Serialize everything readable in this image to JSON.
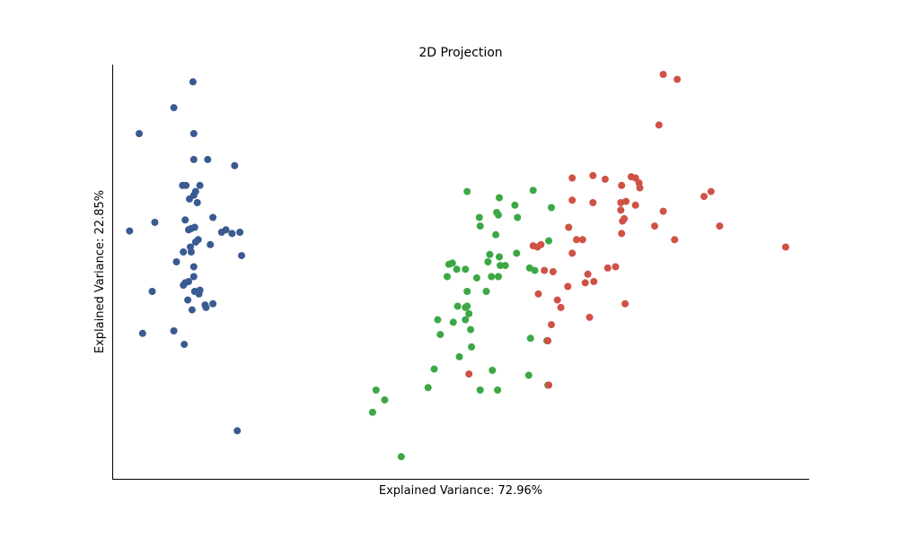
{
  "chart_data": {
    "type": "scatter",
    "title": "2D Projection",
    "xlabel": "Explained Variance: 72.96%",
    "ylabel": "Explained Variance: 22.85%",
    "xlim": [
      -3.51,
      4.51
    ],
    "ylim": [
      -1.62,
      1.74
    ],
    "grid": false,
    "legend": "none",
    "axis_ticks": "hidden",
    "series": [
      {
        "color": "#3a5a92",
        "points": [
          [
            -2.58,
            1.6
          ],
          [
            -2.8,
            1.39
          ],
          [
            -3.2,
            1.18
          ],
          [
            -2.57,
            1.18
          ],
          [
            -2.57,
            0.97
          ],
          [
            -2.41,
            0.97
          ],
          [
            -2.1,
            0.92
          ],
          [
            -2.7,
            0.76
          ],
          [
            -2.66,
            0.76
          ],
          [
            -2.5,
            0.76
          ],
          [
            -2.55,
            0.71
          ],
          [
            -2.57,
            0.68
          ],
          [
            -2.62,
            0.65
          ],
          [
            -2.53,
            0.62
          ],
          [
            -2.35,
            0.5
          ],
          [
            -2.67,
            0.48
          ],
          [
            -3.02,
            0.46
          ],
          [
            -2.56,
            0.42
          ],
          [
            -2.6,
            0.41
          ],
          [
            -2.63,
            0.4
          ],
          [
            -2.2,
            0.4
          ],
          [
            -3.31,
            0.39
          ],
          [
            -2.25,
            0.38
          ],
          [
            -2.13,
            0.37
          ],
          [
            -2.04,
            0.38
          ],
          [
            -2.52,
            0.32
          ],
          [
            -2.55,
            0.3
          ],
          [
            -2.38,
            0.28
          ],
          [
            -2.61,
            0.26
          ],
          [
            -2.69,
            0.22
          ],
          [
            -2.6,
            0.22
          ],
          [
            -2.02,
            0.19
          ],
          [
            -2.77,
            0.14
          ],
          [
            -2.57,
            0.1
          ],
          [
            -2.57,
            0.02
          ],
          [
            -2.63,
            -0.02
          ],
          [
            -2.67,
            -0.03
          ],
          [
            -2.69,
            -0.05
          ],
          [
            -3.05,
            -0.1
          ],
          [
            -2.56,
            -0.1
          ],
          [
            -2.5,
            -0.09
          ],
          [
            -2.51,
            -0.12
          ],
          [
            -2.64,
            -0.17
          ],
          [
            -2.35,
            -0.2
          ],
          [
            -2.44,
            -0.21
          ],
          [
            -2.43,
            -0.23
          ],
          [
            -2.59,
            -0.25
          ],
          [
            -2.8,
            -0.42
          ],
          [
            -3.16,
            -0.44
          ],
          [
            -2.68,
            -0.53
          ],
          [
            -2.07,
            -1.23
          ]
        ]
      },
      {
        "color": "#3ca845",
        "points": [
          [
            0.58,
            0.71
          ],
          [
            0.95,
            0.66
          ],
          [
            1.34,
            0.72
          ],
          [
            1.13,
            0.6
          ],
          [
            1.55,
            0.58
          ],
          [
            0.92,
            0.54
          ],
          [
            0.72,
            0.5
          ],
          [
            0.94,
            0.52
          ],
          [
            1.16,
            0.5
          ],
          [
            0.73,
            0.43
          ],
          [
            0.91,
            0.36
          ],
          [
            1.52,
            0.31
          ],
          [
            0.41,
            0.13
          ],
          [
            0.37,
            0.12
          ],
          [
            0.84,
            0.2
          ],
          [
            1.15,
            0.21
          ],
          [
            0.95,
            0.18
          ],
          [
            1.02,
            0.11
          ],
          [
            0.96,
            0.11
          ],
          [
            0.46,
            0.08
          ],
          [
            0.56,
            0.08
          ],
          [
            0.82,
            0.14
          ],
          [
            1.3,
            0.09
          ],
          [
            0.94,
            0.02
          ],
          [
            0.69,
            0.01
          ],
          [
            1.36,
            0.07
          ],
          [
            0.86,
            0.02
          ],
          [
            0.35,
            0.02
          ],
          [
            0.8,
            -0.1
          ],
          [
            0.58,
            -0.1
          ],
          [
            0.47,
            -0.22
          ],
          [
            0.58,
            -0.22
          ],
          [
            0.24,
            -0.33
          ],
          [
            0.42,
            -0.35
          ],
          [
            0.56,
            -0.33
          ],
          [
            0.56,
            -0.23
          ],
          [
            0.6,
            -0.28
          ],
          [
            0.62,
            -0.41
          ],
          [
            0.27,
            -0.45
          ],
          [
            0.49,
            -0.63
          ],
          [
            0.63,
            -0.55
          ],
          [
            1.31,
            -0.48
          ],
          [
            1.5,
            -0.5
          ],
          [
            1.29,
            -0.78
          ],
          [
            0.87,
            -0.74
          ],
          [
            0.2,
            -0.73
          ],
          [
            0.13,
            -0.88
          ],
          [
            0.73,
            -0.9
          ],
          [
            0.93,
            -0.9
          ],
          [
            1.51,
            -0.86
          ],
          [
            -0.37,
            -0.98
          ],
          [
            -0.47,
            -0.9
          ],
          [
            -0.51,
            -1.08
          ],
          [
            -0.18,
            -1.44
          ]
        ]
      },
      {
        "color": "#d05146",
        "points": [
          [
            2.84,
            1.66
          ],
          [
            3.0,
            1.62
          ],
          [
            2.79,
            1.25
          ],
          [
            1.79,
            0.82
          ],
          [
            2.03,
            0.84
          ],
          [
            2.17,
            0.81
          ],
          [
            2.47,
            0.83
          ],
          [
            2.52,
            0.82
          ],
          [
            2.56,
            0.78
          ],
          [
            2.57,
            0.74
          ],
          [
            2.36,
            0.76
          ],
          [
            3.39,
            0.71
          ],
          [
            3.31,
            0.67
          ],
          [
            1.79,
            0.64
          ],
          [
            2.03,
            0.62
          ],
          [
            2.35,
            0.62
          ],
          [
            2.41,
            0.63
          ],
          [
            2.52,
            0.6
          ],
          [
            2.35,
            0.56
          ],
          [
            2.84,
            0.55
          ],
          [
            2.37,
            0.47
          ],
          [
            2.39,
            0.49
          ],
          [
            2.74,
            0.43
          ],
          [
            3.49,
            0.43
          ],
          [
            1.75,
            0.42
          ],
          [
            2.36,
            0.37
          ],
          [
            1.91,
            0.32
          ],
          [
            1.84,
            0.32
          ],
          [
            2.97,
            0.32
          ],
          [
            4.25,
            0.26
          ],
          [
            1.34,
            0.27
          ],
          [
            1.39,
            0.26
          ],
          [
            1.43,
            0.28
          ],
          [
            1.79,
            0.21
          ],
          [
            2.2,
            0.09
          ],
          [
            2.29,
            0.1
          ],
          [
            1.47,
            0.07
          ],
          [
            1.57,
            0.06
          ],
          [
            1.97,
            0.04
          ],
          [
            2.04,
            -0.02
          ],
          [
            1.94,
            -0.03
          ],
          [
            1.74,
            -0.06
          ],
          [
            1.4,
            -0.12
          ],
          [
            1.62,
            -0.17
          ],
          [
            2.4,
            -0.2
          ],
          [
            1.66,
            -0.23
          ],
          [
            1.99,
            -0.31
          ],
          [
            1.55,
            -0.37
          ],
          [
            1.51,
            -0.5
          ],
          [
            0.6,
            -0.77
          ],
          [
            1.52,
            -0.86
          ]
        ]
      }
    ]
  }
}
